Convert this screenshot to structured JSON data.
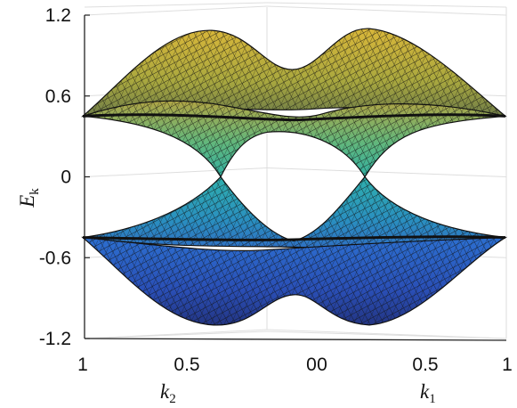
{
  "chart_data": {
    "type": "surface",
    "z_axis": {
      "label": "E",
      "label_subscript": "k",
      "ticks": [
        "1.2",
        "0.6",
        "0",
        "-0.6",
        "-1.2"
      ],
      "values": [
        1.2,
        0.6,
        0,
        -0.6,
        -1.2
      ],
      "range": [
        -1.2,
        1.2
      ]
    },
    "k2_axis": {
      "label": "k",
      "label_subscript": "2",
      "ticks": [
        "1",
        "0.5",
        "0"
      ],
      "values": [
        1,
        0.5,
        0
      ]
    },
    "k1_axis": {
      "label": "k",
      "label_subscript": "1",
      "ticks": [
        "0",
        "0.5",
        "1"
      ],
      "values": [
        0,
        0.5,
        1
      ]
    },
    "bands": [
      {
        "id": "upper-band",
        "max": 1.1,
        "min": 0.45
      },
      {
        "id": "middle-upper-band",
        "max": 0.45,
        "min": 0.0
      },
      {
        "id": "middle-lower-band",
        "max": 0.0,
        "min": -0.45
      },
      {
        "id": "lower-band",
        "max": -0.45,
        "min": -1.1
      }
    ],
    "grid": true,
    "colormap": "parula",
    "colors": {
      "high": "#d6b431",
      "mid_high": "#7fbf6a",
      "mid": "#2aa6a6",
      "mid_low": "#2a6fc8",
      "low": "#2a3b9a"
    }
  }
}
